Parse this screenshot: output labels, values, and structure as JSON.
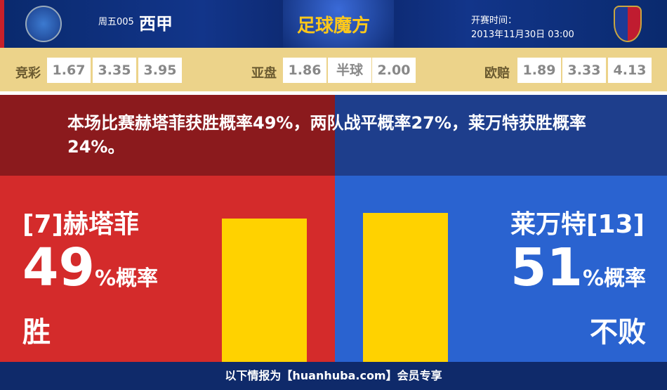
{
  "header": {
    "match_no": "周五005",
    "league": "西甲",
    "brand": "足球魔方",
    "kickoff_label": "开赛时间：",
    "kickoff_time": "2013年11月30日 03:00"
  },
  "odds": {
    "jc_label": "竞彩",
    "jc": [
      "1.67",
      "3.35",
      "3.95"
    ],
    "yp_label": "亚盘",
    "yp": [
      "1.86",
      "半球",
      "2.00"
    ],
    "oz_label": "欧赔",
    "oz": [
      "1.89",
      "3.33",
      "4.13"
    ]
  },
  "summary": "本场比赛赫塔菲获胜概率49%，两队战平概率27%，莱万特获胜概率24%。",
  "home": {
    "name": "[7]赫塔菲",
    "pct": "49",
    "pct_suffix": "%概率",
    "outcome": "胜",
    "probability": 49
  },
  "away": {
    "name": "莱万特[13]",
    "pct": "51",
    "pct_suffix": "%概率",
    "outcome": "不败",
    "probability": 51
  },
  "footer": "以下情报为【huanhuba.com】会员专享",
  "colors": {
    "home": "#d42b2b",
    "away": "#2a63d0",
    "bar": "#ffd200"
  }
}
